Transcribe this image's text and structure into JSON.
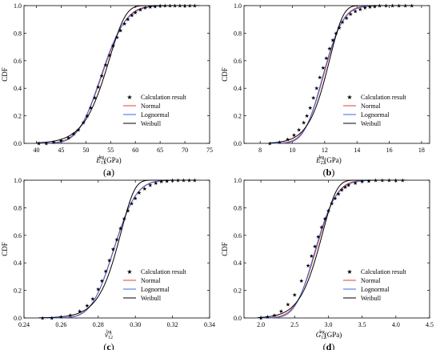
{
  "chart_data": [
    {
      "type": "line",
      "ylabel": "CDF",
      "xlabel": {
        "var": "E",
        "sub": "11",
        "sup": "lrg",
        "unit": "(GPa)"
      },
      "xlim": [
        37.5,
        75
      ],
      "ylim": [
        0,
        1
      ],
      "xticks": [
        40,
        45,
        50,
        55,
        60,
        65,
        70,
        75
      ],
      "yticks": [
        0.0,
        0.2,
        0.4,
        0.6,
        0.8,
        1.0
      ],
      "caption": {
        "open": "(",
        "letter": "a",
        "close": ")"
      },
      "legend": {
        "position": "lower-right",
        "entries": [
          "Calculation result",
          "Normal",
          "Lognormal",
          "Weibull"
        ]
      },
      "series": [
        {
          "name": "Calculation result",
          "kind": "markers",
          "color": "#000000",
          "x": [
            40.5,
            42,
            43.5,
            45,
            46.5,
            47.5,
            48.5,
            49.5,
            50.3,
            51,
            51.8,
            52.5,
            53.2,
            54,
            54.8,
            55.5,
            56.3,
            57,
            57.8,
            58.5,
            59.3,
            60,
            61,
            62,
            63,
            64,
            65,
            66,
            67,
            68,
            69,
            70,
            71,
            72
          ],
          "y": [
            0.0,
            0.0,
            0.01,
            0.02,
            0.04,
            0.07,
            0.1,
            0.15,
            0.2,
            0.26,
            0.33,
            0.41,
            0.49,
            0.57,
            0.64,
            0.71,
            0.77,
            0.82,
            0.87,
            0.9,
            0.93,
            0.95,
            0.97,
            0.985,
            0.99,
            0.995,
            1.0,
            1.0,
            1.0,
            1.0,
            1.0,
            1.0,
            1.0,
            1.0
          ]
        },
        {
          "name": "Normal",
          "kind": "normal",
          "color": "#e0403a",
          "mu": 53.3,
          "sigma": 3.8
        },
        {
          "name": "Lognormal",
          "kind": "lognormal",
          "color": "#4169e1",
          "mu": 53.3,
          "sigma": 3.8
        },
        {
          "name": "Weibull",
          "kind": "weibull",
          "color": "#000000",
          "mu": 53.3,
          "sigma": 3.8
        }
      ],
      "curve_range": [
        40,
        73
      ]
    },
    {
      "type": "line",
      "ylabel": "CDF",
      "xlabel": {
        "var": "E",
        "sub": "22",
        "sup": "lrg",
        "unit": "(GPa)"
      },
      "xlim": [
        7,
        18.5
      ],
      "ylim": [
        0,
        1
      ],
      "xticks": [
        8,
        10,
        12,
        14,
        16,
        18
      ],
      "yticks": [
        0.0,
        0.2,
        0.4,
        0.6,
        0.8,
        1.0
      ],
      "caption": {
        "open": "(",
        "letter": "b",
        "close": ")"
      },
      "legend": {
        "position": "lower-right",
        "entries": [
          "Calculation result",
          "Normal",
          "Lognormal",
          "Weibull"
        ]
      },
      "series": [
        {
          "name": "Calculation result",
          "kind": "markers",
          "color": "#000000",
          "x": [
            8.6,
            9.2,
            9.7,
            10.1,
            10.4,
            10.7,
            10.9,
            11.1,
            11.3,
            11.5,
            11.7,
            11.9,
            12.1,
            12.3,
            12.5,
            12.7,
            12.9,
            13.1,
            13.35,
            13.6,
            13.9,
            14.2,
            14.5,
            14.8,
            15.1,
            15.4,
            15.8,
            16.2,
            16.6,
            17.0,
            17.4
          ],
          "y": [
            0.0,
            0.01,
            0.03,
            0.06,
            0.1,
            0.15,
            0.2,
            0.26,
            0.33,
            0.4,
            0.48,
            0.55,
            0.62,
            0.69,
            0.75,
            0.8,
            0.84,
            0.88,
            0.91,
            0.94,
            0.96,
            0.975,
            0.985,
            0.99,
            0.995,
            1.0,
            1.0,
            1.0,
            1.0,
            1.0,
            1.0
          ]
        },
        {
          "name": "Normal",
          "kind": "normal",
          "color": "#e0403a",
          "mu": 11.95,
          "sigma": 0.95
        },
        {
          "name": "Lognormal",
          "kind": "lognormal",
          "color": "#4169e1",
          "mu": 11.95,
          "sigma": 0.95
        },
        {
          "name": "Weibull",
          "kind": "weibull",
          "color": "#000000",
          "mu": 11.95,
          "sigma": 0.95
        }
      ],
      "curve_range": [
        8.6,
        17.5
      ]
    },
    {
      "type": "line",
      "ylabel": "CDF",
      "xlabel": {
        "var": "v",
        "sub": "12",
        "sup": "lrg",
        "unit": ""
      },
      "xlim": [
        0.24,
        0.34
      ],
      "ylim": [
        0,
        1
      ],
      "xticks": [
        0.24,
        0.26,
        0.28,
        0.3,
        0.32,
        0.34
      ],
      "xtick_labels": [
        "0.24",
        "0.26",
        "0.28",
        "0.30",
        "0.32",
        "0.34"
      ],
      "yticks": [
        0.0,
        0.2,
        0.4,
        0.6,
        0.8,
        1.0
      ],
      "caption": {
        "open": "(",
        "letter": "c",
        "close": ")"
      },
      "legend": {
        "position": "lower-right",
        "entries": [
          "Calculation result",
          "Normal",
          "Lognormal",
          "Weibull"
        ]
      },
      "series": [
        {
          "name": "Calculation result",
          "kind": "markers",
          "color": "#000000",
          "x": [
            0.25,
            0.255,
            0.26,
            0.265,
            0.27,
            0.274,
            0.277,
            0.28,
            0.282,
            0.284,
            0.286,
            0.288,
            0.29,
            0.292,
            0.294,
            0.296,
            0.298,
            0.3,
            0.302,
            0.305,
            0.308,
            0.311,
            0.314,
            0.317,
            0.32,
            0.323,
            0.326,
            0.329,
            0.332
          ],
          "y": [
            0.0,
            0.0,
            0.01,
            0.02,
            0.05,
            0.09,
            0.14,
            0.21,
            0.27,
            0.34,
            0.42,
            0.5,
            0.57,
            0.65,
            0.72,
            0.78,
            0.83,
            0.87,
            0.91,
            0.94,
            0.965,
            0.98,
            0.99,
            0.995,
            1.0,
            1.0,
            1.0,
            1.0,
            1.0
          ]
        },
        {
          "name": "Normal",
          "kind": "normal",
          "color": "#e0403a",
          "mu": 0.2885,
          "sigma": 0.0095
        },
        {
          "name": "Lognormal",
          "kind": "lognormal",
          "color": "#4169e1",
          "mu": 0.2885,
          "sigma": 0.0095
        },
        {
          "name": "Weibull",
          "kind": "weibull",
          "color": "#000000",
          "mu": 0.2885,
          "sigma": 0.0095
        }
      ],
      "curve_range": [
        0.248,
        0.332
      ]
    },
    {
      "type": "line",
      "ylabel": "CDF",
      "xlabel": {
        "var": "G",
        "sub": "12",
        "sup": "lrg",
        "unit": "(GPa)"
      },
      "xlim": [
        1.75,
        4.5
      ],
      "ylim": [
        0,
        1
      ],
      "xticks": [
        2.0,
        2.5,
        3.0,
        3.5,
        4.0,
        4.5
      ],
      "xtick_labels": [
        "2.0",
        "2.5",
        "3.0",
        "3.5",
        "4.0",
        "4.5"
      ],
      "yticks": [
        0.0,
        0.2,
        0.4,
        0.6,
        0.8,
        1.0
      ],
      "caption": {
        "open": "(",
        "letter": "d",
        "close": ")"
      },
      "legend": {
        "position": "lower-right",
        "entries": [
          "Calculation result",
          "Normal",
          "Lognormal",
          "Weibull"
        ]
      },
      "series": [
        {
          "name": "Calculation result",
          "kind": "markers",
          "color": "#000000",
          "x": [
            2.0,
            2.1,
            2.2,
            2.3,
            2.4,
            2.5,
            2.6,
            2.7,
            2.75,
            2.8,
            2.85,
            2.9,
            2.95,
            3.0,
            3.05,
            3.1,
            3.15,
            3.2,
            3.25,
            3.3,
            3.4,
            3.5,
            3.6,
            3.7,
            3.8,
            3.9,
            4.0,
            4.1
          ],
          "y": [
            0.0,
            0.01,
            0.02,
            0.05,
            0.1,
            0.17,
            0.27,
            0.38,
            0.45,
            0.52,
            0.59,
            0.66,
            0.72,
            0.78,
            0.83,
            0.87,
            0.9,
            0.93,
            0.95,
            0.965,
            0.98,
            0.99,
            0.995,
            1.0,
            1.0,
            1.0,
            1.0,
            1.0
          ]
        },
        {
          "name": "Normal",
          "kind": "normal",
          "color": "#e0403a",
          "mu": 2.82,
          "sigma": 0.24
        },
        {
          "name": "Lognormal",
          "kind": "lognormal",
          "color": "#4169e1",
          "mu": 2.82,
          "sigma": 0.24
        },
        {
          "name": "Weibull",
          "kind": "weibull",
          "color": "#000000",
          "mu": 2.82,
          "sigma": 0.24
        }
      ],
      "curve_range": [
        1.95,
        4.15
      ]
    }
  ]
}
